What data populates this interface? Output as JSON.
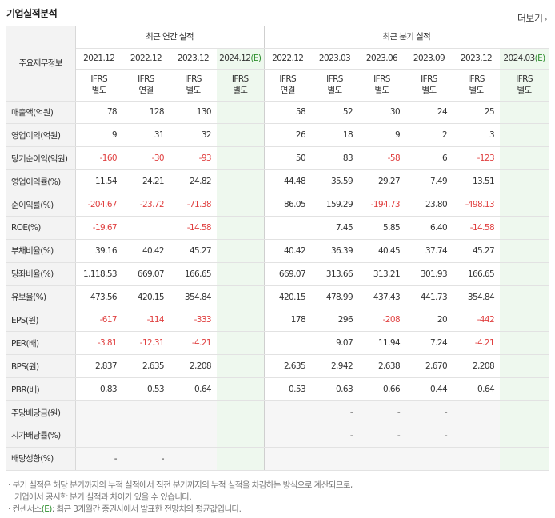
{
  "title": "기업실적분석",
  "more_label": "더보기",
  "header": {
    "row_label": "주요재무정보",
    "annual_group": "최근 연간 실적",
    "quarter_group": "최근 분기 실적"
  },
  "columns": [
    {
      "period": "2021.12",
      "std": "IFRS",
      "basis": "별도",
      "est": false
    },
    {
      "period": "2022.12",
      "std": "IFRS",
      "basis": "연결",
      "est": false
    },
    {
      "period": "2023.12",
      "std": "IFRS",
      "basis": "별도",
      "est": false
    },
    {
      "period": "2024.12",
      "est_mark": "(E)",
      "std": "IFRS",
      "basis": "별도",
      "est": true
    },
    {
      "period": "2022.12",
      "std": "IFRS",
      "basis": "연결",
      "est": false
    },
    {
      "period": "2023.03",
      "std": "IFRS",
      "basis": "별도",
      "est": false
    },
    {
      "period": "2023.06",
      "std": "IFRS",
      "basis": "별도",
      "est": false
    },
    {
      "period": "2023.09",
      "std": "IFRS",
      "basis": "별도",
      "est": false
    },
    {
      "period": "2023.12",
      "std": "IFRS",
      "basis": "별도",
      "est": false
    },
    {
      "period": "2024.03",
      "est_mark": "(E)",
      "std": "IFRS",
      "basis": "별도",
      "est": true
    }
  ],
  "rows": [
    {
      "label": "매출액(억원)",
      "values": [
        "78",
        "128",
        "130",
        "",
        "58",
        "52",
        "30",
        "24",
        "25",
        ""
      ]
    },
    {
      "label": "영업이익(억원)",
      "values": [
        "9",
        "31",
        "32",
        "",
        "26",
        "18",
        "9",
        "2",
        "3",
        ""
      ]
    },
    {
      "label": "당기순이익(억원)",
      "values": [
        "-160",
        "-30",
        "-93",
        "",
        "50",
        "83",
        "-58",
        "6",
        "-123",
        ""
      ]
    },
    {
      "label": "영업이익률(%)",
      "values": [
        "11.54",
        "24.21",
        "24.82",
        "",
        "44.48",
        "35.59",
        "29.27",
        "7.49",
        "13.51",
        ""
      ]
    },
    {
      "label": "순이익률(%)",
      "values": [
        "-204.67",
        "-23.72",
        "-71.38",
        "",
        "86.05",
        "159.29",
        "-194.73",
        "23.80",
        "-498.13",
        ""
      ]
    },
    {
      "label": "ROE(%)",
      "values": [
        "-19.67",
        "",
        "-14.58",
        "",
        "",
        "7.45",
        "5.85",
        "6.40",
        "-14.58",
        ""
      ]
    },
    {
      "label": "부채비율(%)",
      "values": [
        "39.16",
        "40.42",
        "45.27",
        "",
        "40.42",
        "36.39",
        "40.45",
        "37.74",
        "45.27",
        ""
      ]
    },
    {
      "label": "당좌비율(%)",
      "values": [
        "1,118.53",
        "669.07",
        "166.65",
        "",
        "669.07",
        "313.66",
        "313.21",
        "301.93",
        "166.65",
        ""
      ]
    },
    {
      "label": "유보율(%)",
      "values": [
        "473.56",
        "420.15",
        "354.84",
        "",
        "420.15",
        "478.99",
        "437.43",
        "441.73",
        "354.84",
        ""
      ]
    },
    {
      "label": "EPS(원)",
      "values": [
        "-617",
        "-114",
        "-333",
        "",
        "178",
        "296",
        "-208",
        "20",
        "-442",
        ""
      ]
    },
    {
      "label": "PER(배)",
      "values": [
        "-3.81",
        "-12.31",
        "-4.21",
        "",
        "",
        "9.07",
        "11.94",
        "7.24",
        "-4.21",
        ""
      ]
    },
    {
      "label": "BPS(원)",
      "values": [
        "2,837",
        "2,635",
        "2,208",
        "",
        "2,635",
        "2,942",
        "2,638",
        "2,670",
        "2,208",
        ""
      ]
    },
    {
      "label": "PBR(배)",
      "values": [
        "0.83",
        "0.53",
        "0.64",
        "",
        "0.53",
        "0.63",
        "0.66",
        "0.44",
        "0.64",
        ""
      ]
    },
    {
      "label": "주당배당금(원)",
      "values": [
        "",
        "",
        "",
        "",
        "",
        "-",
        "-",
        "-",
        "",
        ""
      ]
    },
    {
      "label": "시가배당률(%)",
      "values": [
        "",
        "",
        "",
        "",
        "",
        "-",
        "-",
        "-",
        "",
        ""
      ]
    },
    {
      "label": "배당성향(%)",
      "values": [
        "-",
        "-",
        "",
        "",
        "",
        "",
        "",
        "",
        "",
        ""
      ]
    }
  ],
  "footnotes": {
    "line1": "· 분기 실적은 해당 분기까지의 누적 실적에서 직전 분기까지의 누적 실적을 차감하는 방식으로 계산되므로,",
    "line2": "기업에서 공시한 분기 실적과 차이가 있을 수 있습니다.",
    "line3_prefix": "· 컨센서스",
    "line3_mark": "(E)",
    "line3_suffix": ": 최근 3개월간 증권사에서 발표한 전망치의 평균값입니다."
  }
}
